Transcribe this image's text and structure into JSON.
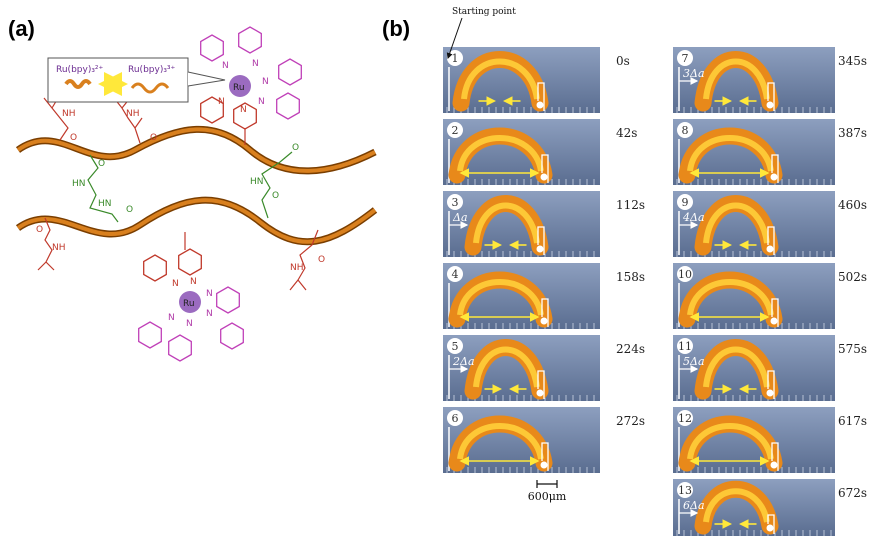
{
  "panel_a": {
    "label": "(a)",
    "legend": [
      "Ru(bpy)₃²⁺",
      "Ru(bpy)₃³⁺"
    ],
    "labels": [
      "NH",
      "O",
      "NH",
      "O",
      "O",
      "HN",
      "HN",
      "O",
      "O",
      "HN",
      "O",
      "O",
      "NH",
      "NH",
      "O",
      "Ru",
      "Ru",
      "N",
      "N",
      "N",
      "N",
      "N",
      "N",
      "N",
      "N",
      "N",
      "N",
      "N",
      "N"
    ]
  },
  "panel_b": {
    "label": "(b)",
    "starting_point": "Starting point",
    "scale_bar": "600μm",
    "frames": [
      {
        "number": 1,
        "time": "0s"
      },
      {
        "number": 2,
        "time": "42s"
      },
      {
        "number": 3,
        "time": "112s",
        "shift": "Δa"
      },
      {
        "number": 4,
        "time": "158s"
      },
      {
        "number": 5,
        "time": "224s",
        "shift": "2Δa"
      },
      {
        "number": 6,
        "time": "272s"
      },
      {
        "number": 7,
        "time": "345s",
        "shift": "3Δa"
      },
      {
        "number": 8,
        "time": "387s"
      },
      {
        "number": 9,
        "time": "460s",
        "shift": "4Δa"
      },
      {
        "number": 10,
        "time": "502s"
      },
      {
        "number": 11,
        "time": "575s",
        "shift": "5Δa"
      },
      {
        "number": 12,
        "time": "617s"
      },
      {
        "number": 13,
        "time": "672s",
        "shift": "6Δa"
      }
    ]
  }
}
